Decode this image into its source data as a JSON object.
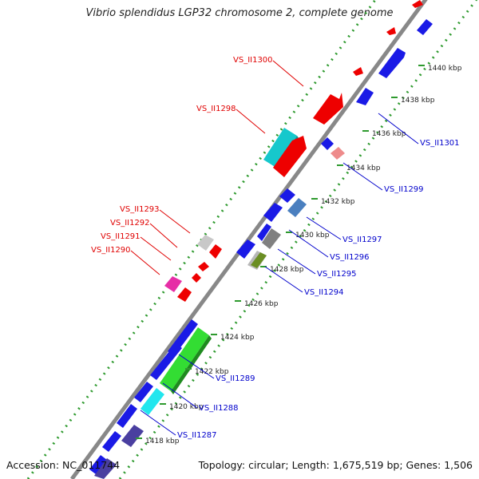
{
  "title": "Vibrio splendidus LGP32 chromosome 2, complete genome",
  "accession_text": "Accession: NC_011744",
  "summary_text": "Topology: circular; Length: 1,675,519 bp; Genes: 1,506",
  "colors": {
    "backbone": "#888888",
    "dots": "#2e9a2e",
    "label_left": "#e00000",
    "label_right": "#0000cc"
  },
  "scale_ticks": [
    "1418 kbp",
    "1420 kbp",
    "1422 kbp",
    "1424 kbp",
    "1426 kbp",
    "1428 kbp",
    "1430 kbp",
    "1432 kbp",
    "1434 kbp",
    "1436 kbp",
    "1438 kbp",
    "1440 kbp"
  ],
  "genes_left_labels": [
    "VS_II1300",
    "VS_II1298",
    "VS_II1293",
    "VS_II1292",
    "VS_II1291",
    "VS_II1290"
  ],
  "genes_right_labels": [
    "VS_II1301",
    "VS_II1299",
    "VS_II1297",
    "VS_II1296",
    "VS_II1295",
    "VS_II1294",
    "VS_II1289",
    "VS_II1288",
    "VS_II1287"
  ],
  "feature_colors": [
    "red",
    "blue",
    "cyan",
    "grey",
    "magenta",
    "lightgreen",
    "slateblue",
    "steelblue",
    "olive",
    "salmon"
  ]
}
